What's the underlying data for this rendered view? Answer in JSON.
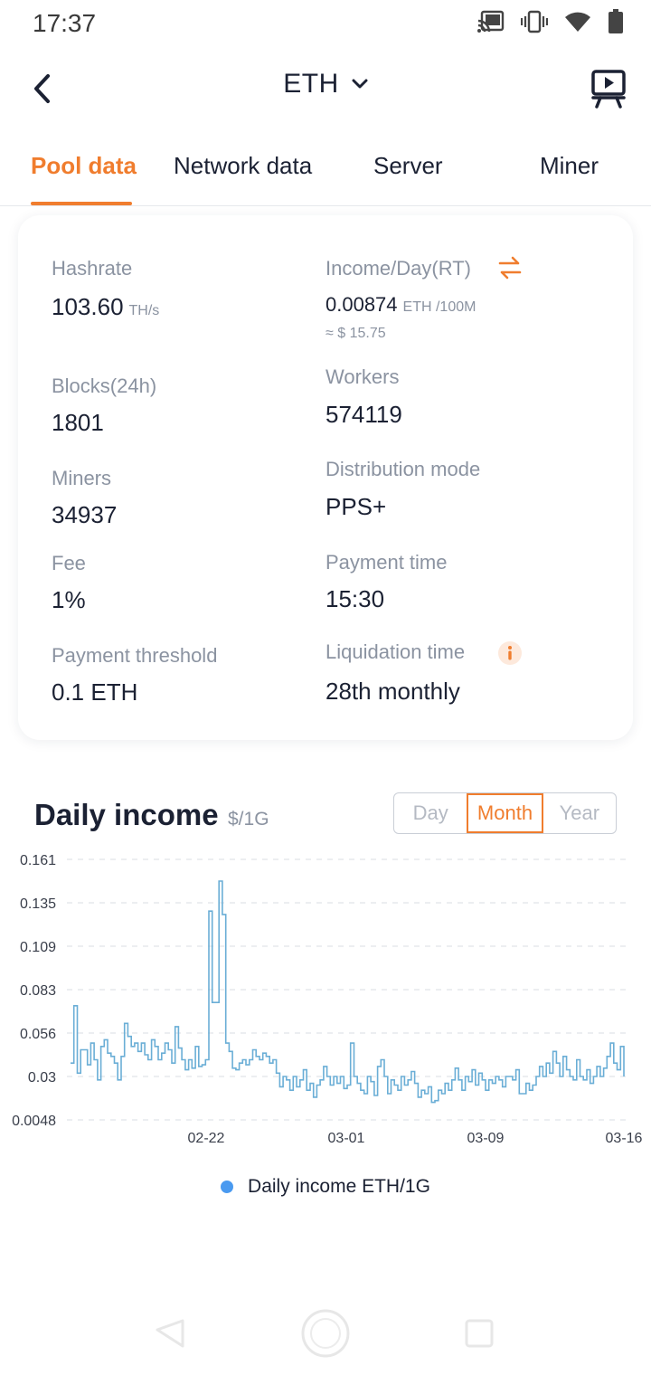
{
  "status_bar": {
    "time": "17:37"
  },
  "app_bar": {
    "title": "ETH"
  },
  "tabs": [
    {
      "label": "Pool data",
      "active": true
    },
    {
      "label": "Network data",
      "active": false
    },
    {
      "label": "Server",
      "active": false
    },
    {
      "label": "Miner",
      "active": false
    }
  ],
  "stats": {
    "hashrate": {
      "label": "Hashrate",
      "value": "103.60",
      "unit": "TH/s"
    },
    "income": {
      "label": "Income/Day(RT)",
      "value": "0.00874",
      "unit": "ETH /100M",
      "usd": "≈ $ 15.75"
    },
    "blocks": {
      "label": "Blocks(24h)",
      "value": "1801"
    },
    "workers": {
      "label": "Workers",
      "value": "574119"
    },
    "miners": {
      "label": "Miners",
      "value": "34937"
    },
    "distribution": {
      "label": "Distribution mode",
      "value": "PPS+"
    },
    "fee": {
      "label": "Fee",
      "value": "1%"
    },
    "payment_time": {
      "label": "Payment time",
      "value": "15:30"
    },
    "payment_threshold": {
      "label": "Payment threshold",
      "value": "0.1 ETH"
    },
    "liquidation": {
      "label": "Liquidation time",
      "value": "28th monthly"
    }
  },
  "chart_section": {
    "title": "Daily income",
    "unit": "$/1G",
    "ranges": [
      {
        "label": "Day",
        "active": false
      },
      {
        "label": "Month",
        "active": true
      },
      {
        "label": "Year",
        "active": false
      }
    ]
  },
  "colors": {
    "accent": "#f07d2e",
    "line": "#6aaed6",
    "legend_dot": "#4a9af0"
  },
  "chart_data": {
    "type": "line",
    "step": true,
    "title": "Daily income",
    "yticks": [
      "0.161",
      "0.135",
      "0.109",
      "0.083",
      "0.056",
      "0.03",
      "0.0048"
    ],
    "ylim": [
      0.0048,
      0.161
    ],
    "xticks": [
      "02-22",
      "03-01",
      "03-09",
      "03-16"
    ],
    "grid": true,
    "legend_position": "bottom",
    "series": [
      {
        "name": "Daily income ETH/1G",
        "values": [
          0.038,
          0.073,
          0.032,
          0.046,
          0.046,
          0.037,
          0.05,
          0.04,
          0.028,
          0.048,
          0.052,
          0.044,
          0.042,
          0.038,
          0.028,
          0.042,
          0.062,
          0.054,
          0.048,
          0.05,
          0.045,
          0.05,
          0.043,
          0.04,
          0.052,
          0.048,
          0.04,
          0.044,
          0.05,
          0.046,
          0.038,
          0.06,
          0.047,
          0.04,
          0.034,
          0.04,
          0.035,
          0.048,
          0.036,
          0.037,
          0.04,
          0.13,
          0.075,
          0.075,
          0.148,
          0.128,
          0.05,
          0.045,
          0.035,
          0.034,
          0.038,
          0.04,
          0.037,
          0.04,
          0.046,
          0.042,
          0.04,
          0.044,
          0.042,
          0.038,
          0.04,
          0.032,
          0.024,
          0.03,
          0.028,
          0.022,
          0.03,
          0.024,
          0.028,
          0.034,
          0.022,
          0.026,
          0.018,
          0.025,
          0.028,
          0.036,
          0.03,
          0.025,
          0.03,
          0.026,
          0.03,
          0.023,
          0.025,
          0.05,
          0.03,
          0.026,
          0.022,
          0.02,
          0.03,
          0.027,
          0.019,
          0.036,
          0.04,
          0.03,
          0.02,
          0.028,
          0.025,
          0.022,
          0.03,
          0.025,
          0.028,
          0.033,
          0.026,
          0.018,
          0.022,
          0.02,
          0.024,
          0.015,
          0.016,
          0.022,
          0.02,
          0.026,
          0.022,
          0.028,
          0.035,
          0.028,
          0.022,
          0.03,
          0.027,
          0.034,
          0.025,
          0.032,
          0.028,
          0.022,
          0.028,
          0.026,
          0.03,
          0.028,
          0.024,
          0.03,
          0.03,
          0.028,
          0.034,
          0.02,
          0.02,
          0.026,
          0.022,
          0.025,
          0.03,
          0.036,
          0.03,
          0.038,
          0.032,
          0.045,
          0.038,
          0.03,
          0.042,
          0.034,
          0.03,
          0.028,
          0.04,
          0.03,
          0.028,
          0.034,
          0.026,
          0.03,
          0.036,
          0.03,
          0.035,
          0.042,
          0.05,
          0.038,
          0.034,
          0.048,
          0.03
        ]
      }
    ]
  }
}
